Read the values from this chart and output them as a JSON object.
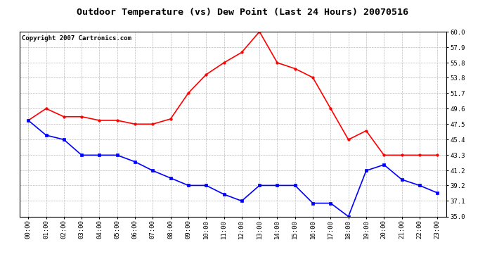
{
  "title": "Outdoor Temperature (vs) Dew Point (Last 24 Hours) 20070516",
  "copyright": "Copyright 2007 Cartronics.com",
  "x_labels": [
    "00:00",
    "01:00",
    "02:00",
    "03:00",
    "04:00",
    "05:00",
    "06:00",
    "07:00",
    "08:00",
    "09:00",
    "10:00",
    "11:00",
    "12:00",
    "13:00",
    "14:00",
    "15:00",
    "16:00",
    "17:00",
    "18:00",
    "19:00",
    "20:00",
    "21:00",
    "22:00",
    "23:00"
  ],
  "temp_red": [
    48.0,
    49.6,
    48.5,
    48.5,
    48.0,
    48.0,
    47.5,
    47.5,
    48.2,
    51.7,
    54.2,
    55.8,
    57.2,
    60.0,
    55.8,
    55.0,
    53.8,
    49.6,
    45.4,
    46.6,
    43.3,
    43.3,
    43.3,
    43.3
  ],
  "dew_blue": [
    48.0,
    46.0,
    45.4,
    43.3,
    43.3,
    43.3,
    42.4,
    41.2,
    40.2,
    39.2,
    39.2,
    38.0,
    37.1,
    39.2,
    39.2,
    39.2,
    36.8,
    36.8,
    35.0,
    41.2,
    42.0,
    40.0,
    39.2,
    38.2
  ],
  "y_ticks": [
    35.0,
    37.1,
    39.2,
    41.2,
    43.3,
    45.4,
    47.5,
    49.6,
    51.7,
    53.8,
    55.8,
    57.9,
    60.0
  ],
  "y_min": 35.0,
  "y_max": 60.0,
  "temp_color": "#ff0000",
  "dew_color": "#0000ff",
  "bg_color": "#ffffff",
  "grid_color": "#bbbbbb",
  "title_fontsize": 9.5,
  "copyright_fontsize": 6.5,
  "tick_fontsize": 6.5
}
